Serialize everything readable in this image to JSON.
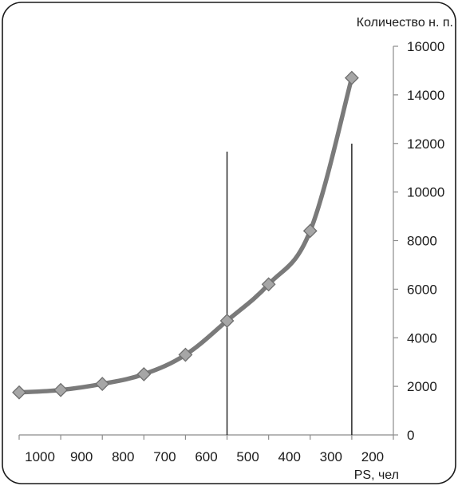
{
  "chart_data": {
    "type": "line",
    "title": "",
    "xlabel": "PS, чел",
    "ylabel": "Количество н. п.",
    "x_axis": {
      "reversed": true,
      "range": [
        150,
        1050
      ],
      "tick_labels": [
        "1000",
        "900",
        "800",
        "700",
        "600",
        "500",
        "400",
        "300",
        "200"
      ]
    },
    "y_axis": {
      "position": "right",
      "range": [
        0,
        16000
      ],
      "tick_labels": [
        "0",
        "2000",
        "4000",
        "6000",
        "8000",
        "10000",
        "12000",
        "14000",
        "16000"
      ]
    },
    "series": [
      {
        "x": [
          1050,
          950,
          850,
          750,
          650,
          550,
          450,
          350,
          250
        ],
        "y": [
          1750,
          1850,
          2100,
          2500,
          3300,
          4700,
          6200,
          8400,
          14700
        ]
      }
    ],
    "reference_lines_x": [
      550,
      250
    ],
    "grid": false,
    "legend": "none",
    "colors": {
      "line": "#7a7a7a",
      "marker_fill": "#a6a6a6",
      "marker_stroke": "#6e6e6e",
      "axis": "#8c8c8c",
      "reference_line": "#1a1a1a",
      "frame": "#1a1a1a"
    }
  }
}
